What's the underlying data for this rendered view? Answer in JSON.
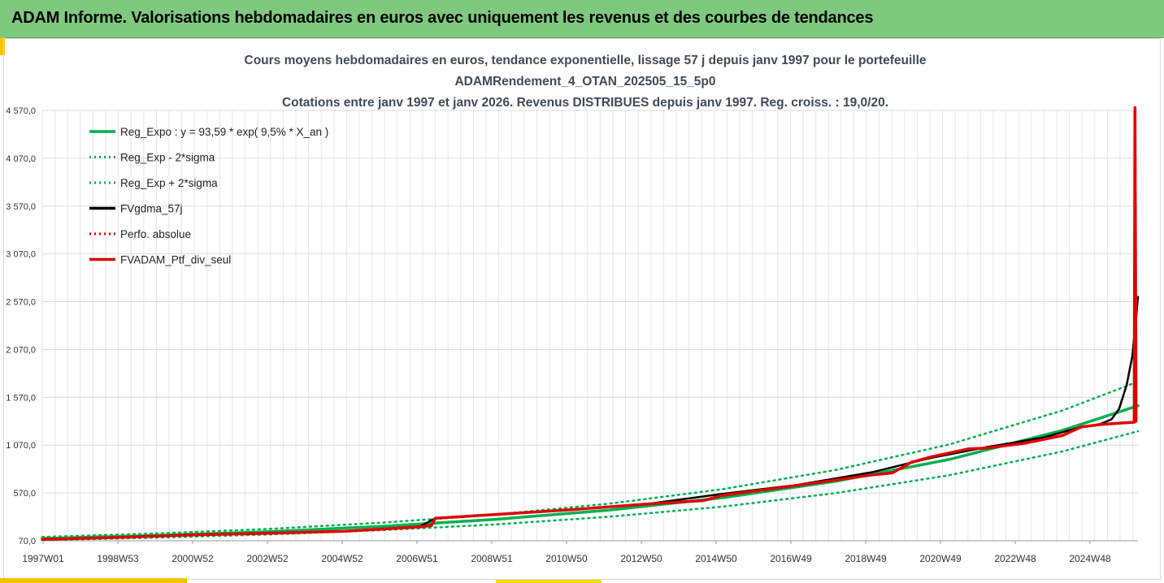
{
  "header": {
    "title": "ADAM Informe. Valorisations hebdomadaires en euros avec uniquement les revenus et des courbes de tendances"
  },
  "colors": {
    "banner": "#7fc97f",
    "trend_green": "#00b050",
    "smooth_black": "#000000",
    "portfolio_red": "#e00000",
    "accent_yellow": "#f2c200"
  },
  "chart_data": {
    "type": "line",
    "title_lines": [
      "Cours moyens hebdomadaires  en euros, tendance exponentielle, lissage 57 j depuis janv 1997 pour le portefeuille",
      "ADAMRendement_4_OTAN_202505_15_5p0",
      "Cotations entre janv 1997 et janv 2026. Revenus DISTRIBUES depuis janv 1997. Reg. croiss. : 19,0/20."
    ],
    "x_tick_labels": [
      "1997W01",
      "1998W53",
      "2000W52",
      "2002W52",
      "2004W52",
      "2006W51",
      "2008W51",
      "2010W50",
      "2012W50",
      "2014W50",
      "2016W49",
      "2018W49",
      "2020W49",
      "2022W48",
      "2024W48"
    ],
    "x_range": [
      1997.0,
      2026.0
    ],
    "ylim": [
      70,
      4570
    ],
    "y_ticks": [
      70,
      570,
      1070,
      1570,
      2070,
      2570,
      3070,
      3570,
      4070,
      4570
    ],
    "y_tick_labels": [
      "70,0",
      "570,0",
      "1 070,0",
      "1 570,0",
      "2 070,0",
      "2 570,0",
      "3 070,0",
      "3 570,0",
      "4 070,0",
      "4 570,0"
    ],
    "grid": true,
    "legend_position": "top-left",
    "legend": [
      {
        "label": "Reg_Expo : y = 93,59 * exp( 9,5% *  X_an )",
        "color": "#00b050",
        "style": "solid"
      },
      {
        "label": "Reg_Exp - 2*sigma",
        "color": "#00b050",
        "style": "dotted"
      },
      {
        "label": "Reg_Exp + 2*sigma",
        "color": "#00b050",
        "style": "dotted"
      },
      {
        "label": "FVgdma_57j",
        "color": "#000000",
        "style": "solid"
      },
      {
        "label": "Perfo. absolue",
        "color": "#e00000",
        "style": "dotted"
      },
      {
        "label": "FVADAM_Ptf_div_seul",
        "color": "#e00000",
        "style": "solid"
      }
    ],
    "series": [
      {
        "name": "Reg_Expo : y = 93,59 * exp( 9,5% *  X_an )",
        "x": [
          1997.0,
          2000.0,
          2003.0,
          2006.0,
          2009.0,
          2012.0,
          2015.0,
          2018.0,
          2021.0,
          2024.0,
          2026.0
        ],
        "values": [
          94,
          125,
          166,
          221,
          294,
          391,
          520,
          692,
          920,
          1224,
          1482
        ]
      },
      {
        "name": "Reg_Exp - 2*sigma",
        "x": [
          1997.0,
          2000.0,
          2003.0,
          2006.0,
          2009.0,
          2012.0,
          2015.0,
          2018.0,
          2021.0,
          2024.0,
          2026.0
        ],
        "values": [
          77,
          102,
          136,
          181,
          241,
          321,
          427,
          568,
          755,
          1004,
          1215
        ]
      },
      {
        "name": "Reg_Exp + 2*sigma",
        "x": [
          1997.0,
          2000.0,
          2003.0,
          2006.0,
          2009.0,
          2012.0,
          2015.0,
          2018.0,
          2021.0,
          2024.0,
          2026.0
        ],
        "values": [
          110,
          146,
          194,
          259,
          344,
          458,
          609,
          810,
          1077,
          1432,
          1734
        ]
      },
      {
        "name": "FVgdma_57j",
        "x": [
          1997.0,
          1999.0,
          2001.0,
          2003.0,
          2005.0,
          2007.0,
          2007.4,
          2009.0,
          2011.0,
          2013.0,
          2015.0,
          2017.0,
          2019.0,
          2020.5,
          2022.0,
          2023.5,
          2024.5,
          2025.0,
          2025.3,
          2025.5,
          2025.7,
          2025.85,
          2025.95,
          2026.0
        ],
        "values": [
          85,
          105,
          130,
          150,
          170,
          220,
          305,
          345,
          395,
          455,
          560,
          655,
          790,
          935,
          1050,
          1150,
          1260,
          1290,
          1340,
          1450,
          1700,
          2000,
          2400,
          2620
        ]
      },
      {
        "name": "FVADAM_Ptf_div_seul",
        "x": [
          1997.0,
          1999.0,
          2001.0,
          2003.0,
          2005.0,
          2007.0,
          2007.3,
          2007.4,
          2009.0,
          2011.0,
          2013.0,
          2014.5,
          2015.0,
          2017.0,
          2019.0,
          2019.5,
          2020.0,
          2020.5,
          2021.5,
          2022.0,
          2023.0,
          2024.0,
          2024.5,
          2025.0,
          2025.5,
          2025.9,
          2025.92,
          2025.95
        ],
        "values": [
          85,
          105,
          132,
          148,
          170,
          215,
          230,
          305,
          345,
          395,
          455,
          490,
          545,
          650,
          760,
          780,
          890,
          945,
          1030,
          1040,
          1090,
          1170,
          1260,
          1285,
          1300,
          1310,
          4600,
          1320
        ]
      }
    ]
  }
}
